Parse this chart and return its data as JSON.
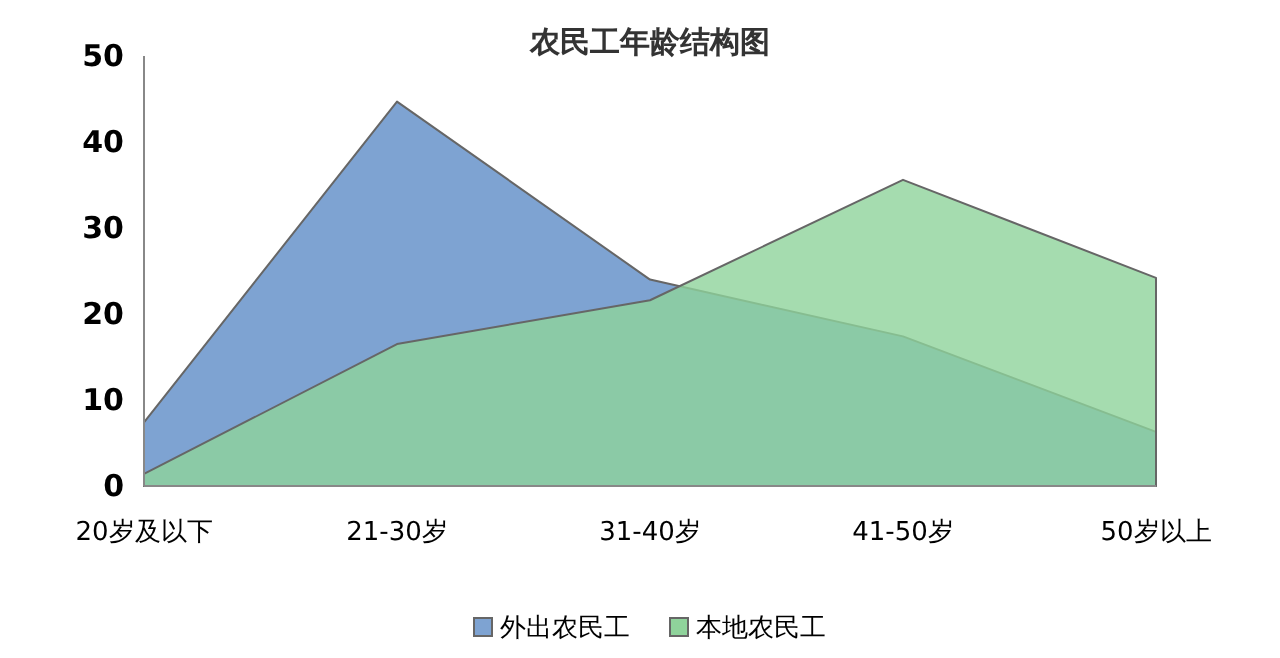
{
  "chart_data": {
    "type": "area",
    "title": "农民工年龄结构图",
    "categories": [
      "20岁及以下",
      "21-30岁",
      "31-40岁",
      "41-50岁",
      "50岁以上"
    ],
    "series": [
      {
        "name": "外出农民工",
        "color": "#7ea3d2",
        "values": [
          7.4,
          44.7,
          24.0,
          17.4,
          6.3
        ]
      },
      {
        "name": "本地农民工",
        "color": "#8fd39b",
        "values": [
          1.4,
          16.5,
          21.6,
          35.6,
          24.2
        ]
      }
    ],
    "ylim": [
      0,
      50
    ],
    "yticks": [
      0,
      10,
      20,
      30,
      40,
      50
    ],
    "legend": "bottom",
    "grid": false
  }
}
